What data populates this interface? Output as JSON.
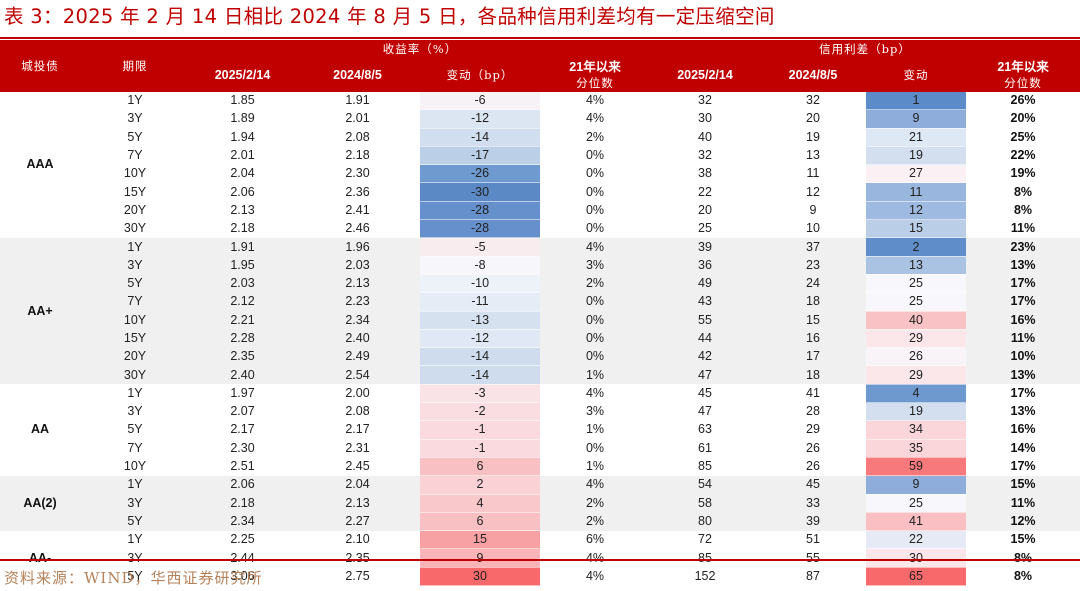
{
  "title": "表 3：2025 年 2 月 14 日相比 2024 年 8 月 5 日，各品种信用利差均有一定压缩空间",
  "header": {
    "col_group": "城投债",
    "col_term": "期限",
    "yield_group": "收益率（%）",
    "spread_group": "信用利差（bp）",
    "yield_cols": {
      "d1": "2025/2/14",
      "d2": "2024/8/5",
      "chg": "变动（bp）",
      "pct_l1": "21年以来",
      "pct_l2": "分位数"
    },
    "spread_cols": {
      "d1": "2025/2/14",
      "d2": "2024/8/5",
      "chg": "变动",
      "pct_l1": "21年以来",
      "pct_l2": "分位数"
    }
  },
  "colors": {
    "brand_red": "#C00000",
    "heat_blue_dark": "#5B8BC8",
    "heat_neutral": "#F8F8FC",
    "heat_red_dark": "#F8696B",
    "source_text": "#B5825A"
  },
  "groups": [
    {
      "name": "AAA",
      "shade": "white",
      "rows": [
        {
          "term": "1Y",
          "y1": "1.85",
          "y2": "1.91",
          "ychg": "-6",
          "ypct": "4%",
          "s1": "32",
          "s2": "32",
          "schg": "1",
          "spct": "26%",
          "yc": "#F7F2F6",
          "sc": "#5B8BC8"
        },
        {
          "term": "3Y",
          "y1": "1.89",
          "y2": "2.01",
          "ychg": "-12",
          "ypct": "4%",
          "s1": "30",
          "s2": "20",
          "schg": "9",
          "spct": "20%",
          "yc": "#DCE6F3",
          "sc": "#8FADDA"
        },
        {
          "term": "5Y",
          "y1": "1.94",
          "y2": "2.08",
          "ychg": "-14",
          "ypct": "2%",
          "s1": "40",
          "s2": "19",
          "schg": "21",
          "spct": "25%",
          "yc": "#D1DEEF",
          "sc": "#DEE7F4"
        },
        {
          "term": "7Y",
          "y1": "2.01",
          "y2": "2.18",
          "ychg": "-17",
          "ypct": "0%",
          "s1": "32",
          "s2": "13",
          "schg": "19",
          "spct": "22%",
          "yc": "#BBCFE7",
          "sc": "#D3DFEF"
        },
        {
          "term": "10Y",
          "y1": "2.04",
          "y2": "2.30",
          "ychg": "-26",
          "ypct": "0%",
          "s1": "38",
          "s2": "11",
          "schg": "27",
          "spct": "19%",
          "yc": "#6E9ACF",
          "sc": "#FBF0F3"
        },
        {
          "term": "15Y",
          "y1": "2.06",
          "y2": "2.36",
          "ychg": "-30",
          "ypct": "0%",
          "s1": "22",
          "s2": "12",
          "schg": "11",
          "spct": "8%",
          "yc": "#5A89C6",
          "sc": "#99B7DE"
        },
        {
          "term": "20Y",
          "y1": "2.13",
          "y2": "2.41",
          "ychg": "-28",
          "ypct": "0%",
          "s1": "20",
          "s2": "9",
          "schg": "12",
          "spct": "8%",
          "yc": "#6590CB",
          "sc": "#9EBAE0"
        },
        {
          "term": "30Y",
          "y1": "2.18",
          "y2": "2.46",
          "ychg": "-28",
          "ypct": "0%",
          "s1": "25",
          "s2": "10",
          "schg": "15",
          "spct": "11%",
          "yc": "#6590CB",
          "sc": "#BACEE8"
        }
      ]
    },
    {
      "name": "AA+",
      "shade": "grey",
      "rows": [
        {
          "term": "1Y",
          "y1": "1.91",
          "y2": "1.96",
          "ychg": "-5",
          "ypct": "4%",
          "s1": "39",
          "s2": "37",
          "schg": "2",
          "spct": "23%",
          "yc": "#F9ECEF",
          "sc": "#5E8DC9"
        },
        {
          "term": "3Y",
          "y1": "1.95",
          "y2": "2.03",
          "ychg": "-8",
          "ypct": "3%",
          "s1": "36",
          "s2": "23",
          "schg": "13",
          "spct": "13%",
          "yc": "#F7F7FB",
          "sc": "#ABC3E3"
        },
        {
          "term": "5Y",
          "y1": "2.03",
          "y2": "2.13",
          "ychg": "-10",
          "ypct": "2%",
          "s1": "49",
          "s2": "24",
          "schg": "25",
          "spct": "17%",
          "yc": "#EDF1F8",
          "sc": "#F8F8FC"
        },
        {
          "term": "7Y",
          "y1": "2.12",
          "y2": "2.23",
          "ychg": "-11",
          "ypct": "0%",
          "s1": "43",
          "s2": "18",
          "schg": "25",
          "spct": "17%",
          "yc": "#E5ECF6",
          "sc": "#F8F8FC"
        },
        {
          "term": "10Y",
          "y1": "2.21",
          "y2": "2.34",
          "ychg": "-13",
          "ypct": "0%",
          "s1": "55",
          "s2": "15",
          "schg": "40",
          "spct": "16%",
          "yc": "#D6E1F0",
          "sc": "#F9C2C5"
        },
        {
          "term": "15Y",
          "y1": "2.28",
          "y2": "2.40",
          "ychg": "-12",
          "ypct": "0%",
          "s1": "44",
          "s2": "16",
          "schg": "29",
          "spct": "11%",
          "yc": "#DFE8F4",
          "sc": "#FBE7EA"
        },
        {
          "term": "20Y",
          "y1": "2.35",
          "y2": "2.49",
          "ychg": "-14",
          "ypct": "0%",
          "s1": "42",
          "s2": "17",
          "schg": "26",
          "spct": "10%",
          "yc": "#CFDCEE",
          "sc": "#F9F4F8"
        },
        {
          "term": "30Y",
          "y1": "2.40",
          "y2": "2.54",
          "ychg": "-14",
          "ypct": "1%",
          "s1": "47",
          "s2": "18",
          "schg": "29",
          "spct": "13%",
          "yc": "#CFDCEE",
          "sc": "#FBE7EA"
        }
      ]
    },
    {
      "name": "AA",
      "shade": "white",
      "rows": [
        {
          "term": "1Y",
          "y1": "1.97",
          "y2": "2.00",
          "ychg": "-3",
          "ypct": "4%",
          "s1": "45",
          "s2": "41",
          "schg": "4",
          "spct": "17%",
          "yc": "#FAE3E6",
          "sc": "#6D99CF"
        },
        {
          "term": "3Y",
          "y1": "2.07",
          "y2": "2.08",
          "ychg": "-2",
          "ypct": "3%",
          "s1": "47",
          "s2": "28",
          "schg": "19",
          "spct": "13%",
          "yc": "#FADDE1",
          "sc": "#D3DFEF"
        },
        {
          "term": "5Y",
          "y1": "2.17",
          "y2": "2.17",
          "ychg": "-1",
          "ypct": "1%",
          "s1": "63",
          "s2": "29",
          "schg": "34",
          "spct": "16%",
          "yc": "#FADADE",
          "sc": "#FAD6DA"
        },
        {
          "term": "7Y",
          "y1": "2.30",
          "y2": "2.31",
          "ychg": "-1",
          "ypct": "0%",
          "s1": "61",
          "s2": "26",
          "schg": "35",
          "spct": "14%",
          "yc": "#FADADE",
          "sc": "#FAD6DA"
        },
        {
          "term": "10Y",
          "y1": "2.51",
          "y2": "2.45",
          "ychg": "6",
          "ypct": "1%",
          "s1": "85",
          "s2": "26",
          "schg": "59",
          "spct": "17%",
          "yc": "#F9C0C3",
          "sc": "#F8797B"
        }
      ]
    },
    {
      "name": "AA(2)",
      "shade": "grey",
      "rows": [
        {
          "term": "1Y",
          "y1": "2.06",
          "y2": "2.04",
          "ychg": "2",
          "ypct": "4%",
          "s1": "54",
          "s2": "45",
          "schg": "9",
          "spct": "15%",
          "yc": "#FAD2D6",
          "sc": "#8FADDA"
        },
        {
          "term": "3Y",
          "y1": "2.18",
          "y2": "2.13",
          "ychg": "4",
          "ypct": "2%",
          "s1": "58",
          "s2": "33",
          "schg": "25",
          "spct": "11%",
          "yc": "#F9C8CB",
          "sc": "#F8F8FC"
        },
        {
          "term": "5Y",
          "y1": "2.34",
          "y2": "2.27",
          "ychg": "6",
          "ypct": "2%",
          "s1": "80",
          "s2": "39",
          "schg": "41",
          "spct": "12%",
          "yc": "#F9C0C3",
          "sc": "#F9BFC2"
        }
      ]
    },
    {
      "name": "AA-",
      "shade": "white",
      "rows": [
        {
          "term": "1Y",
          "y1": "2.25",
          "y2": "2.10",
          "ychg": "15",
          "ypct": "6%",
          "s1": "72",
          "s2": "51",
          "schg": "22",
          "spct": "15%",
          "yc": "#F8A1A4",
          "sc": "#E5EAF5"
        },
        {
          "term": "3Y",
          "y1": "2.44",
          "y2": "2.35",
          "ychg": "9",
          "ypct": "4%",
          "s1": "85",
          "s2": "55",
          "schg": "30",
          "spct": "8%",
          "yc": "#F9B4B7",
          "sc": "#FBE6E9"
        },
        {
          "term": "5Y",
          "y1": "3.06",
          "y2": "2.75",
          "ychg": "30",
          "ypct": "4%",
          "s1": "152",
          "s2": "87",
          "schg": "65",
          "spct": "8%",
          "yc": "#F8696B",
          "sc": "#F8696B"
        }
      ]
    }
  ],
  "footer": {
    "source": "资料来源：WIND，华西证券研究所"
  }
}
